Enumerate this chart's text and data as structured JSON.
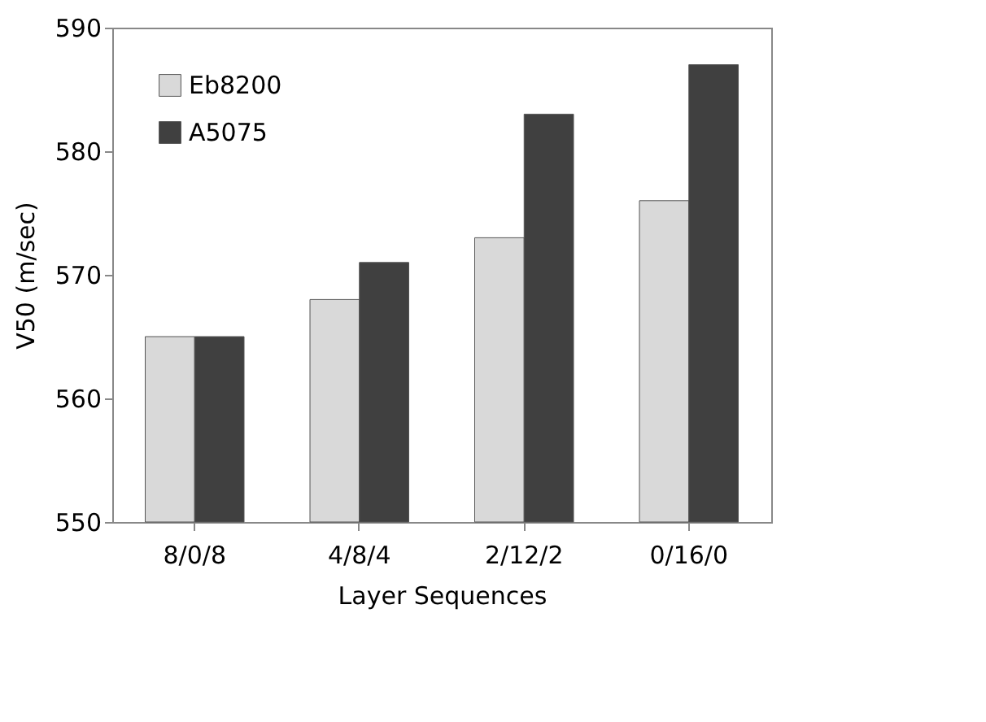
{
  "chart_data": {
    "type": "bar",
    "xlabel": "Layer Sequences",
    "ylabel": "V50 (m/sec)",
    "categories": [
      "8/0/8",
      "4/8/4",
      "2/12/2",
      "0/16/0"
    ],
    "series": [
      {
        "name": "Eb8200",
        "color": "#d9d9d9",
        "values": [
          565,
          568,
          573,
          576
        ]
      },
      {
        "name": "A5075",
        "color": "#404040",
        "values": [
          565,
          571,
          583,
          587
        ]
      }
    ],
    "ylim": [
      550,
      590
    ],
    "yticks": [
      550,
      560,
      570,
      580,
      590
    ],
    "grid": false,
    "legend": "top left"
  }
}
